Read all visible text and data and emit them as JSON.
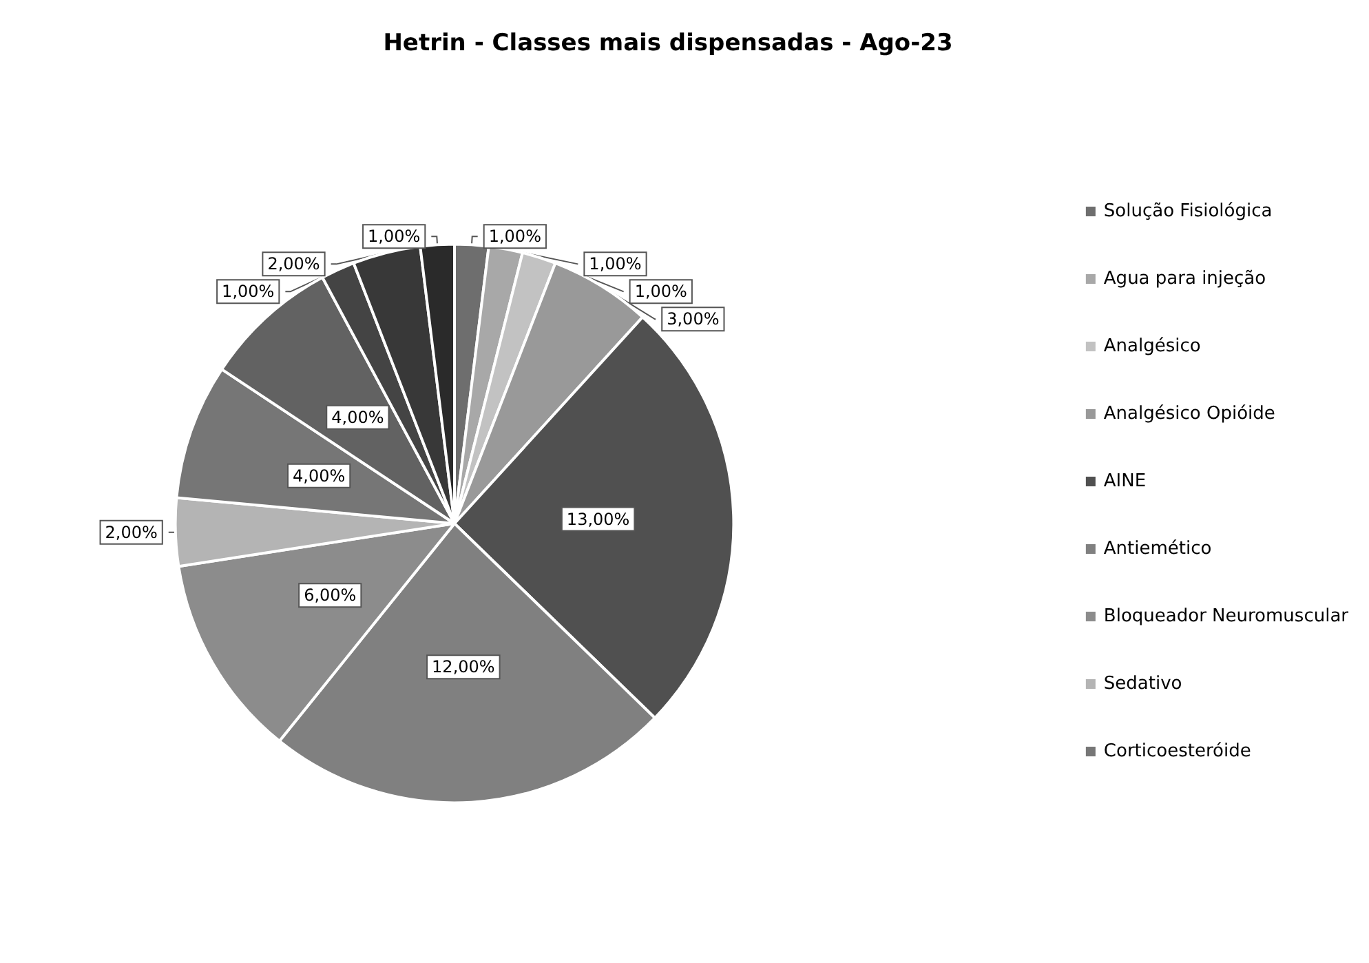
{
  "chart_data": {
    "type": "pie",
    "title": "Hetrin - Classes mais dispensadas - Ago-23",
    "categories": [
      "Solução Fisiológica",
      "Agua para injeção",
      "Analgésico",
      "Analgésico Opióide",
      "AINE",
      "Antiemético",
      "Bloqueador Neuromuscular",
      "Sedativo",
      "Corticoesteróide",
      null,
      null,
      null,
      null
    ],
    "values": [
      1,
      1,
      1,
      3,
      13,
      12,
      6,
      2,
      4,
      4,
      1,
      2,
      1
    ],
    "value_labels": [
      "1,00%",
      "1,00%",
      "1,00%",
      "3,00%",
      "13,00%",
      "12,00%",
      "6,00%",
      "2,00%",
      "4,00%",
      "4,00%",
      "1,00%",
      "2,00%",
      "1,00%"
    ],
    "colors": [
      "#6e6e6e",
      "#a8a8a8",
      "#c2c2c2",
      "#999999",
      "#505050",
      "#808080",
      "#8c8c8c",
      "#b4b4b4",
      "#767676",
      "#626262",
      "#444444",
      "#383838",
      "#2a2a2a"
    ],
    "legend": "right"
  }
}
